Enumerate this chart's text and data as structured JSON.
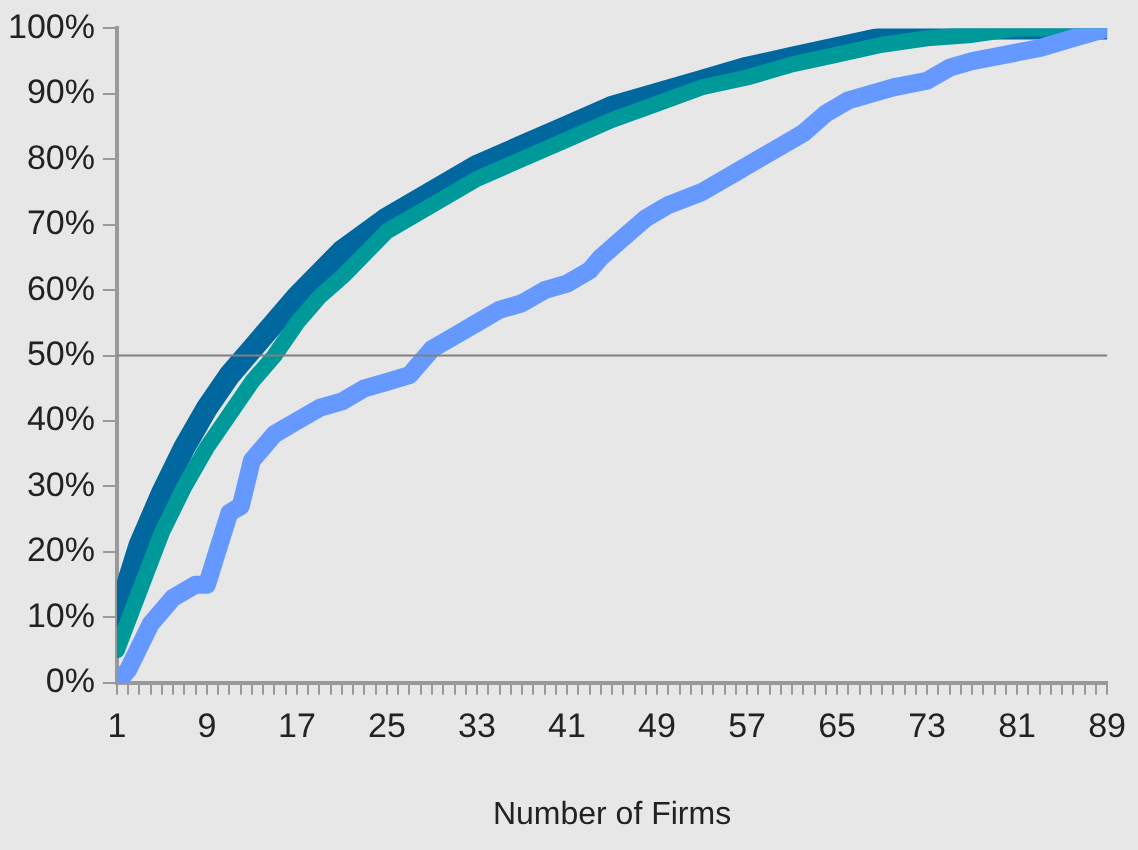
{
  "chart_data": {
    "type": "line",
    "xlabel": "Number of Firms",
    "xlim": [
      1,
      89
    ],
    "xticks": [
      1,
      {
        "value": 2,
        "label": null
      },
      {
        "value": 3,
        "label": null
      },
      {
        "value": 4,
        "label": null
      },
      {
        "value": 5,
        "label": null
      },
      {
        "value": 6,
        "label": null
      },
      {
        "value": 7,
        "label": null
      },
      {
        "value": 8,
        "label": null
      },
      9,
      {
        "value": 10,
        "label": null
      },
      {
        "value": 11,
        "label": null
      },
      {
        "value": 12,
        "label": null
      },
      {
        "value": 13,
        "label": null
      },
      {
        "value": 14,
        "label": null
      },
      {
        "value": 15,
        "label": null
      },
      {
        "value": 16,
        "label": null
      },
      17,
      {
        "value": 18,
        "label": null
      },
      {
        "value": 19,
        "label": null
      },
      {
        "value": 20,
        "label": null
      },
      {
        "value": 21,
        "label": null
      },
      {
        "value": 22,
        "label": null
      },
      {
        "value": 23,
        "label": null
      },
      {
        "value": 24,
        "label": null
      },
      25,
      {
        "value": 26,
        "label": null
      },
      {
        "value": 27,
        "label": null
      },
      {
        "value": 28,
        "label": null
      },
      {
        "value": 29,
        "label": null
      },
      {
        "value": 30,
        "label": null
      },
      {
        "value": 31,
        "label": null
      },
      {
        "value": 32,
        "label": null
      },
      33,
      {
        "value": 34,
        "label": null
      },
      {
        "value": 35,
        "label": null
      },
      {
        "value": 36,
        "label": null
      },
      {
        "value": 37,
        "label": null
      },
      {
        "value": 38,
        "label": null
      },
      {
        "value": 39,
        "label": null
      },
      {
        "value": 40,
        "label": null
      },
      41,
      {
        "value": 42,
        "label": null
      },
      {
        "value": 43,
        "label": null
      },
      {
        "value": 44,
        "label": null
      },
      {
        "value": 45,
        "label": null
      },
      {
        "value": 46,
        "label": null
      },
      {
        "value": 47,
        "label": null
      },
      {
        "value": 48,
        "label": null
      },
      49,
      {
        "value": 50,
        "label": null
      },
      {
        "value": 51,
        "label": null
      },
      {
        "value": 52,
        "label": null
      },
      {
        "value": 53,
        "label": null
      },
      {
        "value": 54,
        "label": null
      },
      {
        "value": 55,
        "label": null
      },
      {
        "value": 56,
        "label": null
      },
      57,
      {
        "value": 58,
        "label": null
      },
      {
        "value": 59,
        "label": null
      },
      {
        "value": 60,
        "label": null
      },
      {
        "value": 61,
        "label": null
      },
      {
        "value": 62,
        "label": null
      },
      {
        "value": 63,
        "label": null
      },
      {
        "value": 64,
        "label": null
      },
      65,
      {
        "value": 66,
        "label": null
      },
      {
        "value": 67,
        "label": null
      },
      {
        "value": 68,
        "label": null
      },
      {
        "value": 69,
        "label": null
      },
      {
        "value": 70,
        "label": null
      },
      {
        "value": 71,
        "label": null
      },
      {
        "value": 72,
        "label": null
      },
      73,
      {
        "value": 74,
        "label": null
      },
      {
        "value": 75,
        "label": null
      },
      {
        "value": 76,
        "label": null
      },
      {
        "value": 77,
        "label": null
      },
      {
        "value": 78,
        "label": null
      },
      {
        "value": 79,
        "label": null
      },
      {
        "value": 80,
        "label": null
      },
      81,
      {
        "value": 82,
        "label": null
      },
      {
        "value": 83,
        "label": null
      },
      {
        "value": 84,
        "label": null
      },
      {
        "value": 85,
        "label": null
      },
      {
        "value": 86,
        "label": null
      },
      {
        "value": 87,
        "label": null
      },
      {
        "value": 88,
        "label": null
      },
      89
    ],
    "ylim": [
      0,
      100
    ],
    "yticks": [
      {
        "value": 0,
        "label": "0%"
      },
      {
        "value": 10,
        "label": "10%"
      },
      {
        "value": 20,
        "label": "20%"
      },
      {
        "value": 30,
        "label": "30%"
      },
      {
        "value": 40,
        "label": "40%"
      },
      {
        "value": 50,
        "label": "50%"
      },
      {
        "value": 60,
        "label": "60%"
      },
      {
        "value": 70,
        "label": "70%"
      },
      {
        "value": 80,
        "label": "80%"
      },
      {
        "value": 90,
        "label": "90%"
      },
      {
        "value": 100,
        "label": "100%"
      }
    ],
    "grid": false,
    "legend": false,
    "marker": "none",
    "ref_lines": [
      {
        "axis": "y",
        "value": 50,
        "color": "#808080"
      }
    ],
    "series": [
      {
        "color": "#00679f",
        "x": [
          1,
          3,
          5,
          7,
          9,
          11,
          13,
          15,
          17,
          21,
          25,
          29,
          33,
          37,
          41,
          45,
          49,
          53,
          57,
          61,
          65,
          69,
          73,
          81,
          89
        ],
        "values": [
          10,
          21,
          29,
          36,
          42,
          47,
          51,
          55,
          59,
          66,
          71,
          75,
          79,
          82,
          85,
          88,
          90,
          92,
          94,
          95.5,
          97,
          98.5,
          100,
          100,
          100
        ]
      },
      {
        "color": "#009999",
        "x": [
          1,
          3,
          5,
          7,
          9,
          11,
          13,
          15,
          17,
          19,
          21,
          25,
          29,
          33,
          37,
          41,
          45,
          49,
          53,
          57,
          61,
          65,
          69,
          73,
          77,
          81,
          89
        ],
        "values": [
          5,
          14,
          23,
          30,
          36,
          41,
          46,
          50,
          55,
          59,
          62,
          69,
          73,
          77,
          80,
          83,
          86,
          88.5,
          91,
          92.5,
          94.5,
          96,
          97.5,
          98.5,
          99,
          100,
          100
        ]
      },
      {
        "color": "#6699ff",
        "x": [
          1,
          2,
          4,
          6,
          8,
          9,
          11,
          12,
          13,
          15,
          17,
          19,
          21,
          23,
          25,
          27,
          29,
          31,
          33,
          35,
          37,
          39,
          41,
          43,
          44,
          46,
          48,
          50,
          53,
          56,
          58,
          60,
          62,
          64,
          66,
          68,
          70,
          73,
          75,
          77,
          80,
          83,
          86,
          89
        ],
        "values": [
          0,
          2,
          9,
          13,
          15,
          15,
          26,
          27,
          34,
          38,
          40,
          42,
          43,
          45,
          46,
          47,
          51,
          53,
          55,
          57,
          58,
          60,
          61,
          63,
          65,
          68,
          71,
          73,
          75,
          78,
          80,
          82,
          84,
          87,
          89,
          90,
          91,
          92,
          94,
          95,
          96,
          97,
          98.5,
          100
        ]
      }
    ]
  }
}
